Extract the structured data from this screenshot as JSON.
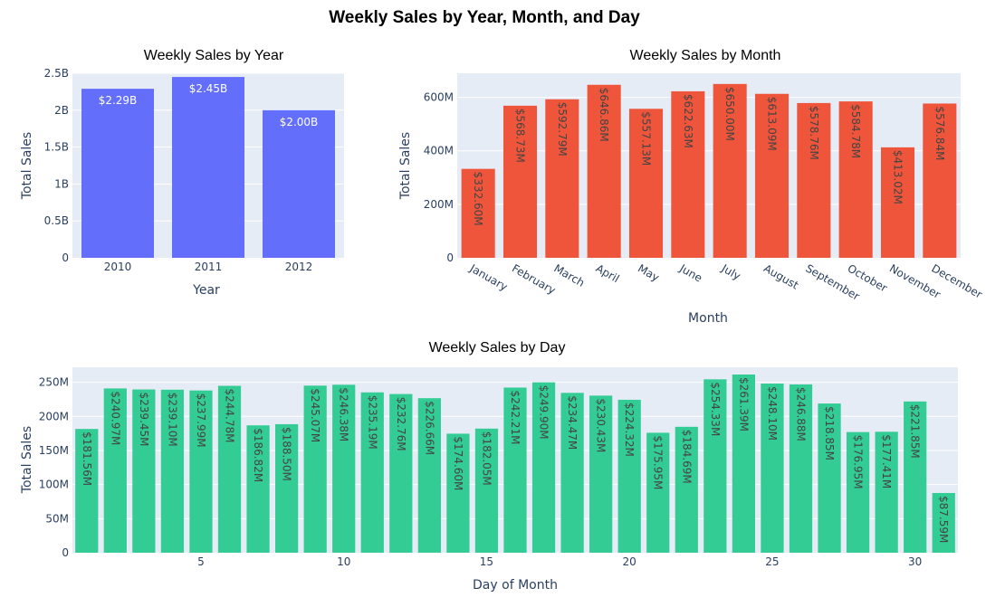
{
  "title": "Weekly Sales by Year, Month, and Day",
  "colors": {
    "plot_bg": "#e5ecf6",
    "grid": "#ffffff",
    "year_bar": "#636efa",
    "month_bar": "#ef553b",
    "day_bar": "#33cc94",
    "label_light": "#ffffff",
    "label_dark": "#444444"
  },
  "chart_data": [
    {
      "type": "bar",
      "title": "Weekly Sales by Year",
      "xlabel": "Year",
      "ylabel": "Total Sales",
      "categories": [
        "2010",
        "2011",
        "2012"
      ],
      "values": [
        2290000000,
        2450000000,
        2000000000
      ],
      "value_labels": [
        "$2.29B",
        "$2.45B",
        "$2.00B"
      ],
      "ylim": [
        0,
        2500000000
      ],
      "yticks": [
        0,
        500000000,
        1000000000,
        1500000000,
        2000000000,
        2500000000
      ],
      "ytick_labels": [
        "0",
        "0.5B",
        "1B",
        "1.5B",
        "2B",
        "2.5B"
      ],
      "grid": true
    },
    {
      "type": "bar",
      "title": "Weekly Sales by Month",
      "xlabel": "Month",
      "ylabel": "Total Sales",
      "categories": [
        "January",
        "February",
        "March",
        "April",
        "May",
        "June",
        "July",
        "August",
        "September",
        "October",
        "November",
        "December"
      ],
      "values": [
        332600000,
        568730000,
        592790000,
        646860000,
        557130000,
        622630000,
        650000000,
        613090000,
        578760000,
        584780000,
        413020000,
        576840000
      ],
      "value_labels": [
        "$332.60M",
        "$568.73M",
        "$592.79M",
        "$646.86M",
        "$557.13M",
        "$622.63M",
        "$650.00M",
        "$613.09M",
        "$578.76M",
        "$584.78M",
        "$413.02M",
        "$576.84M"
      ],
      "ylim": [
        0,
        690000000
      ],
      "yticks": [
        0,
        200000000,
        400000000,
        600000000
      ],
      "ytick_labels": [
        "0",
        "200M",
        "400M",
        "600M"
      ],
      "grid": true
    },
    {
      "type": "bar",
      "title": "Weekly Sales by Day",
      "xlabel": "Day of Month",
      "ylabel": "Total Sales",
      "categories": [
        1,
        2,
        3,
        4,
        5,
        6,
        7,
        8,
        9,
        10,
        11,
        12,
        13,
        14,
        15,
        16,
        17,
        18,
        19,
        20,
        21,
        22,
        23,
        24,
        25,
        26,
        27,
        28,
        29,
        30,
        31
      ],
      "values": [
        181560000,
        240970000,
        239450000,
        239100000,
        237990000,
        244780000,
        186820000,
        188500000,
        245070000,
        246380000,
        235190000,
        232760000,
        226660000,
        174600000,
        182050000,
        242210000,
        249900000,
        234470000,
        230430000,
        224320000,
        175950000,
        184690000,
        254330000,
        261390000,
        248100000,
        246880000,
        218850000,
        176950000,
        177410000,
        221850000,
        87590000
      ],
      "value_labels": [
        "$181.56M",
        "$240.97M",
        "$239.45M",
        "$239.10M",
        "$237.99M",
        "$244.78M",
        "$186.82M",
        "$188.50M",
        "$245.07M",
        "$246.38M",
        "$235.19M",
        "$232.76M",
        "$226.66M",
        "$174.60M",
        "$182.05M",
        "$242.21M",
        "$249.90M",
        "$234.47M",
        "$230.43M",
        "$224.32M",
        "$175.95M",
        "$184.69M",
        "$254.33M",
        "$261.39M",
        "$248.10M",
        "$246.88M",
        "$218.85M",
        "$176.95M",
        "$177.41M",
        "$221.85M",
        "$87.59M"
      ],
      "ylim": [
        0,
        272000000
      ],
      "yticks": [
        0,
        50000000,
        100000000,
        150000000,
        200000000,
        250000000
      ],
      "ytick_labels": [
        "0",
        "50M",
        "100M",
        "150M",
        "200M",
        "250M"
      ],
      "xticks": [
        5,
        10,
        15,
        20,
        25,
        30
      ],
      "xtick_labels": [
        "5",
        "10",
        "15",
        "20",
        "25",
        "30"
      ],
      "grid": true
    }
  ]
}
